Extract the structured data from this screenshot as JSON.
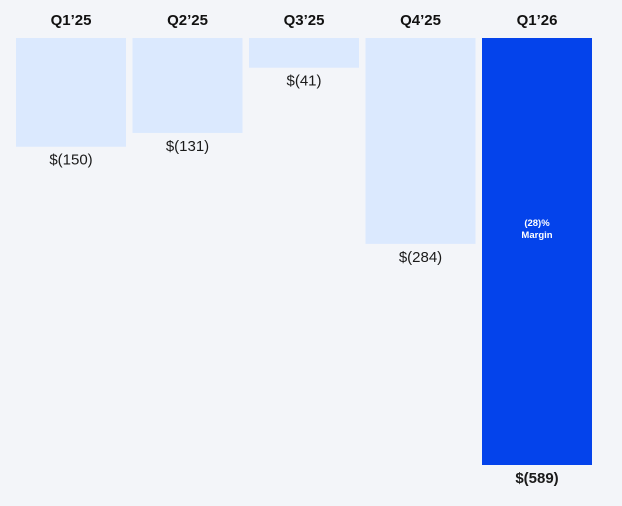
{
  "chart_data": {
    "type": "bar",
    "title": "",
    "xlabel": "",
    "ylabel": "",
    "categories": [
      "Q1’25",
      "Q2’25",
      "Q3’25",
      "Q4’25",
      "Q1’26"
    ],
    "values": [
      -150,
      -131,
      -41,
      -284,
      -589
    ],
    "value_labels": [
      "$(150)",
      "$(131)",
      "$(41)",
      "$(284)",
      "$(589)"
    ],
    "ylim": [
      -589,
      0
    ],
    "grid": false,
    "legend": "none",
    "highlight_index": 4,
    "annotation": {
      "index": 4,
      "lines": [
        "(28)%",
        "Margin"
      ]
    },
    "colors": {
      "bar": "#dbe9fe",
      "highlight": "#0443eb",
      "background": "#f3f5f9",
      "text": "#111111",
      "annotation_text": "#ffffff"
    }
  }
}
